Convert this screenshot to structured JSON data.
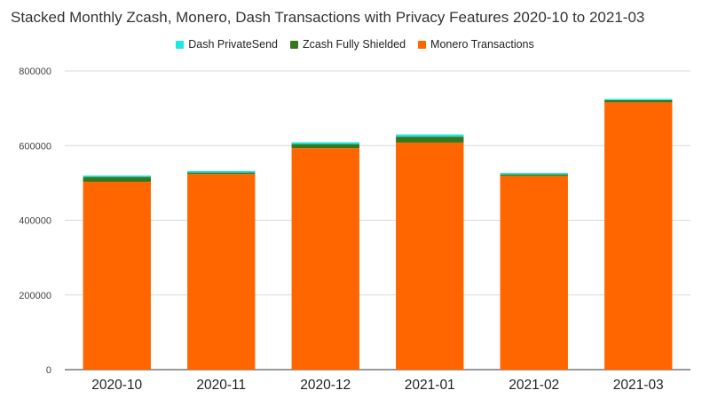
{
  "chart_data": {
    "type": "bar",
    "stacked": true,
    "title": "Stacked Monthly Zcash, Monero, Dash Transactions with Privacy Features 2020-10 to 2021-03",
    "xlabel": "",
    "ylabel": "",
    "categories": [
      "2020-10",
      "2020-11",
      "2020-12",
      "2021-01",
      "2021-02",
      "2021-03"
    ],
    "series": [
      {
        "name": "Monero Transactions",
        "color": "#ff6600",
        "values": [
          503000,
          524000,
          593000,
          608000,
          519000,
          716000
        ]
      },
      {
        "name": "Zcash Fully Shielded",
        "color": "#38761d",
        "values": [
          13000,
          4000,
          11000,
          16000,
          4000,
          6000
        ]
      },
      {
        "name": "Dash PrivateSend",
        "color": "#1de9e2",
        "values": [
          4000,
          4000,
          5000,
          6000,
          4000,
          3000
        ]
      }
    ],
    "legend_order": [
      "Dash PrivateSend",
      "Zcash Fully Shielded",
      "Monero Transactions"
    ],
    "ylim": [
      0,
      800000
    ],
    "yticks": [
      "0",
      "200000",
      "400000",
      "600000",
      "800000"
    ],
    "ytick_values": [
      0,
      200000,
      400000,
      600000,
      800000
    ],
    "grid": true,
    "legend_position": "top-center"
  }
}
